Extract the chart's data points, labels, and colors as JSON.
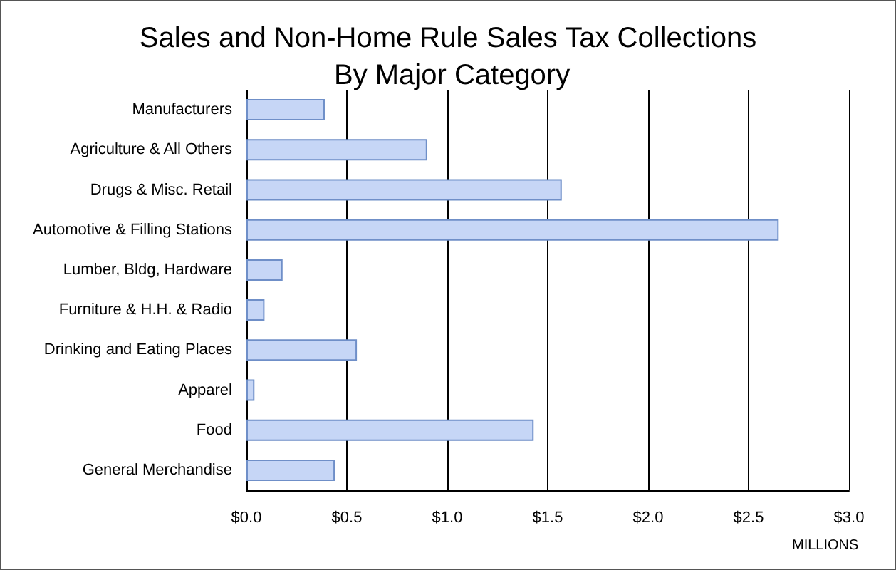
{
  "chart_data": {
    "type": "bar",
    "orientation": "horizontal",
    "title": "Sales and Non-Home Rule Sales Tax Collections By Major Category",
    "xlabel": "MILLIONS",
    "categories": [
      "Manufacturers",
      "Agriculture & All Others",
      "Drugs & Misc. Retail",
      "Automotive & Filling Stations",
      "Lumber, Bldg, Hardware",
      "Furniture & H.H. & Radio",
      "Drinking and Eating Places",
      "Apparel",
      "Food",
      "General Merchandise"
    ],
    "values": [
      0.39,
      0.9,
      1.57,
      2.65,
      0.18,
      0.09,
      0.55,
      0.04,
      1.43,
      0.44
    ],
    "color": "#c6d6f6",
    "xlim": [
      0,
      3
    ],
    "xticks": [
      {
        "value": 0,
        "label": "$0.0"
      },
      {
        "value": 0.5,
        "label": "$0.5"
      },
      {
        "value": 1,
        "label": "$1.0"
      },
      {
        "value": 1.5,
        "label": "$1.5"
      },
      {
        "value": 2,
        "label": "$2.0"
      },
      {
        "value": 2.5,
        "label": "$2.5"
      },
      {
        "value": 3,
        "label": "$3.0"
      }
    ],
    "grid": "x"
  }
}
